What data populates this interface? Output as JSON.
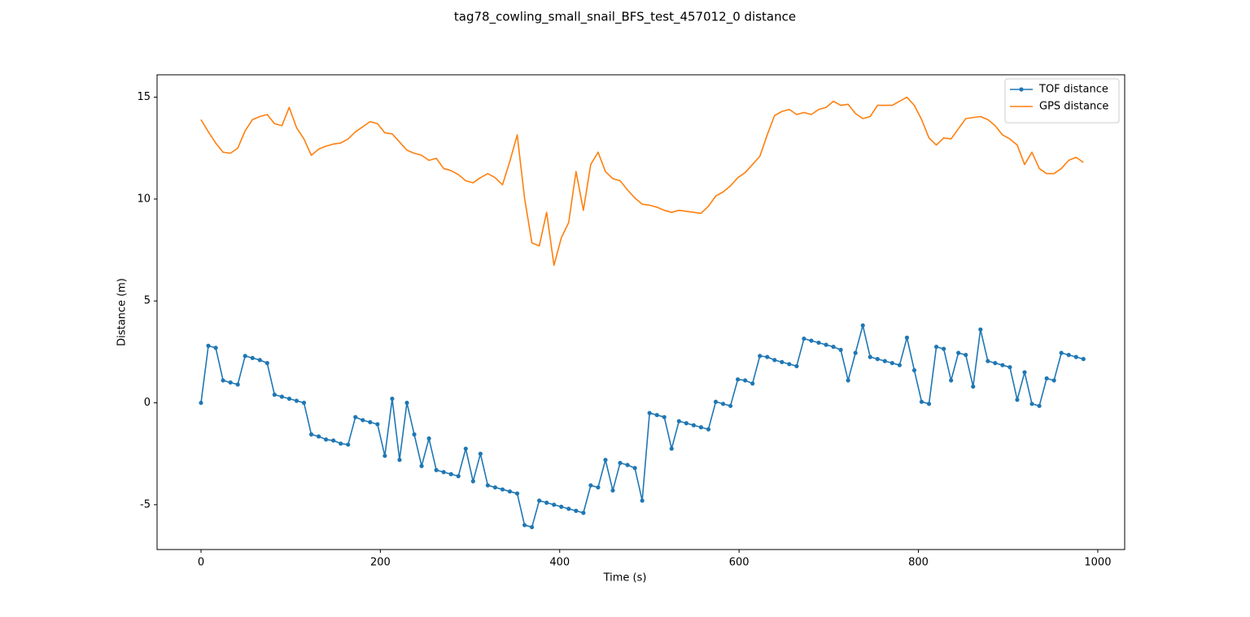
{
  "chart_data": {
    "type": "line",
    "title": "tag78_cowling_small_snail_BFS_test_457012_0 distance",
    "x_label": "Time (s)",
    "y_label": "Distance (m)",
    "x": [
      0,
      8.2,
      16.4,
      24.6,
      32.8,
      41,
      49.2,
      57.4,
      65.6,
      73.8,
      82,
      90.2,
      98.4,
      106.6,
      114.8,
      123,
      131.2,
      139.4,
      147.6,
      155.8,
      164,
      172.2,
      180.4,
      188.6,
      196.8,
      205,
      213.2,
      221.4,
      229.6,
      237.8,
      246,
      254.2,
      262.4,
      270.6,
      278.8,
      287,
      295.2,
      303.4,
      311.6,
      319.8,
      328,
      336.2,
      344.4,
      352.6,
      360.8,
      369,
      377.2,
      385.4,
      393.6,
      401.8,
      410,
      418.2,
      426.4,
      434.6,
      442.8,
      451,
      459.2,
      467.4,
      475.6,
      483.8,
      492,
      500.2,
      508.4,
      516.6,
      524.8,
      533,
      541.2,
      549.4,
      557.6,
      565.8,
      574,
      582.2,
      590.4,
      598.6,
      606.8,
      615,
      623.2,
      631.4,
      639.6,
      647.8,
      656,
      664.2,
      672.4,
      680.6,
      688.8,
      697,
      705.2,
      713.4,
      721.6,
      729.8,
      738,
      746.2,
      754.4,
      762.6,
      770.8,
      779,
      787.2,
      795.4,
      803.6,
      811.8,
      820,
      828.2,
      836.4,
      844.6,
      852.8,
      861,
      869.2,
      877.4,
      885.6,
      893.8,
      902,
      910.2,
      918.4,
      926.6,
      934.8,
      943,
      951.2,
      959.4,
      967.6,
      975.8,
      984
    ],
    "series": [
      {
        "name": "TOF distance",
        "color": "#1f77b4",
        "marker": "o",
        "values": [
          0,
          2.8,
          2.7,
          1.1,
          1.0,
          0.9,
          2.3,
          2.2,
          2.1,
          1.95,
          0.4,
          0.3,
          0.2,
          0.1,
          0.0,
          -1.55,
          -1.65,
          -1.8,
          -1.85,
          -2.0,
          -2.05,
          -0.7,
          -0.85,
          -0.95,
          -1.05,
          -2.6,
          0.2,
          -2.8,
          0.0,
          -1.55,
          -3.1,
          -1.75,
          -3.3,
          -3.4,
          -3.5,
          -3.6,
          -2.25,
          -3.85,
          -2.5,
          -4.05,
          -4.15,
          -4.25,
          -4.35,
          -4.45,
          -6.0,
          -6.1,
          -4.8,
          -4.9,
          -5.0,
          -5.1,
          -5.2,
          -5.3,
          -5.4,
          -4.05,
          -4.15,
          -2.8,
          -4.3,
          -2.95,
          -3.05,
          -3.2,
          -4.8,
          -0.5,
          -0.6,
          -0.7,
          -2.25,
          -0.9,
          -1.0,
          -1.1,
          -1.2,
          -1.3,
          0.05,
          -0.05,
          -0.15,
          1.15,
          1.1,
          0.95,
          2.3,
          2.25,
          2.1,
          2.0,
          1.9,
          1.8,
          3.15,
          3.05,
          2.95,
          2.85,
          2.75,
          2.6,
          1.1,
          2.45,
          3.8,
          2.25,
          2.15,
          2.05,
          1.95,
          1.85,
          3.2,
          1.6,
          0.05,
          -0.05,
          2.75,
          2.65,
          1.1,
          2.45,
          2.35,
          0.8,
          3.6,
          2.05,
          1.95,
          1.85,
          1.75,
          0.15,
          1.5,
          -0.05,
          -0.15,
          1.2,
          1.1,
          2.45,
          2.35,
          2.25,
          2.15
        ]
      },
      {
        "name": "GPS distance",
        "color": "#ff7f0e",
        "values": [
          13.9,
          13.3,
          12.75,
          12.3,
          12.25,
          12.5,
          13.35,
          13.9,
          14.05,
          14.15,
          13.7,
          13.6,
          14.5,
          13.5,
          12.95,
          12.15,
          12.45,
          12.6,
          12.7,
          12.75,
          12.95,
          13.3,
          13.55,
          13.8,
          13.7,
          13.25,
          13.2,
          12.8,
          12.4,
          12.25,
          12.15,
          11.9,
          12.0,
          11.5,
          11.4,
          11.2,
          10.9,
          10.8,
          11.05,
          11.25,
          11.05,
          10.7,
          11.85,
          13.15,
          10.05,
          7.85,
          7.7,
          9.35,
          6.75,
          8.1,
          8.85,
          11.35,
          9.45,
          11.7,
          12.3,
          11.35,
          11.0,
          10.9,
          10.45,
          10.05,
          9.75,
          9.7,
          9.6,
          9.45,
          9.35,
          9.45,
          9.4,
          9.35,
          9.3,
          9.65,
          10.15,
          10.35,
          10.65,
          11.05,
          11.3,
          11.7,
          12.1,
          13.15,
          14.1,
          14.3,
          14.4,
          14.15,
          14.25,
          14.15,
          14.4,
          14.5,
          14.8,
          14.6,
          14.65,
          14.2,
          13.95,
          14.05,
          14.6,
          14.6,
          14.6,
          14.8,
          15.0,
          14.6,
          13.9,
          13.0,
          12.65,
          13.0,
          12.95,
          13.45,
          13.95,
          14.0,
          14.05,
          13.9,
          13.6,
          13.15,
          12.95,
          12.65,
          11.7,
          12.3,
          11.5,
          11.25,
          11.25,
          11.5,
          11.9,
          12.05,
          11.8
        ]
      }
    ],
    "xlim": [
      -49,
      1030
    ],
    "xticks": [
      0,
      200,
      400,
      600,
      800,
      1000
    ],
    "ylim": [
      -7.2,
      16.1
    ],
    "yticks": [
      -5,
      0,
      5,
      10,
      15
    ],
    "legend": "upper right"
  }
}
